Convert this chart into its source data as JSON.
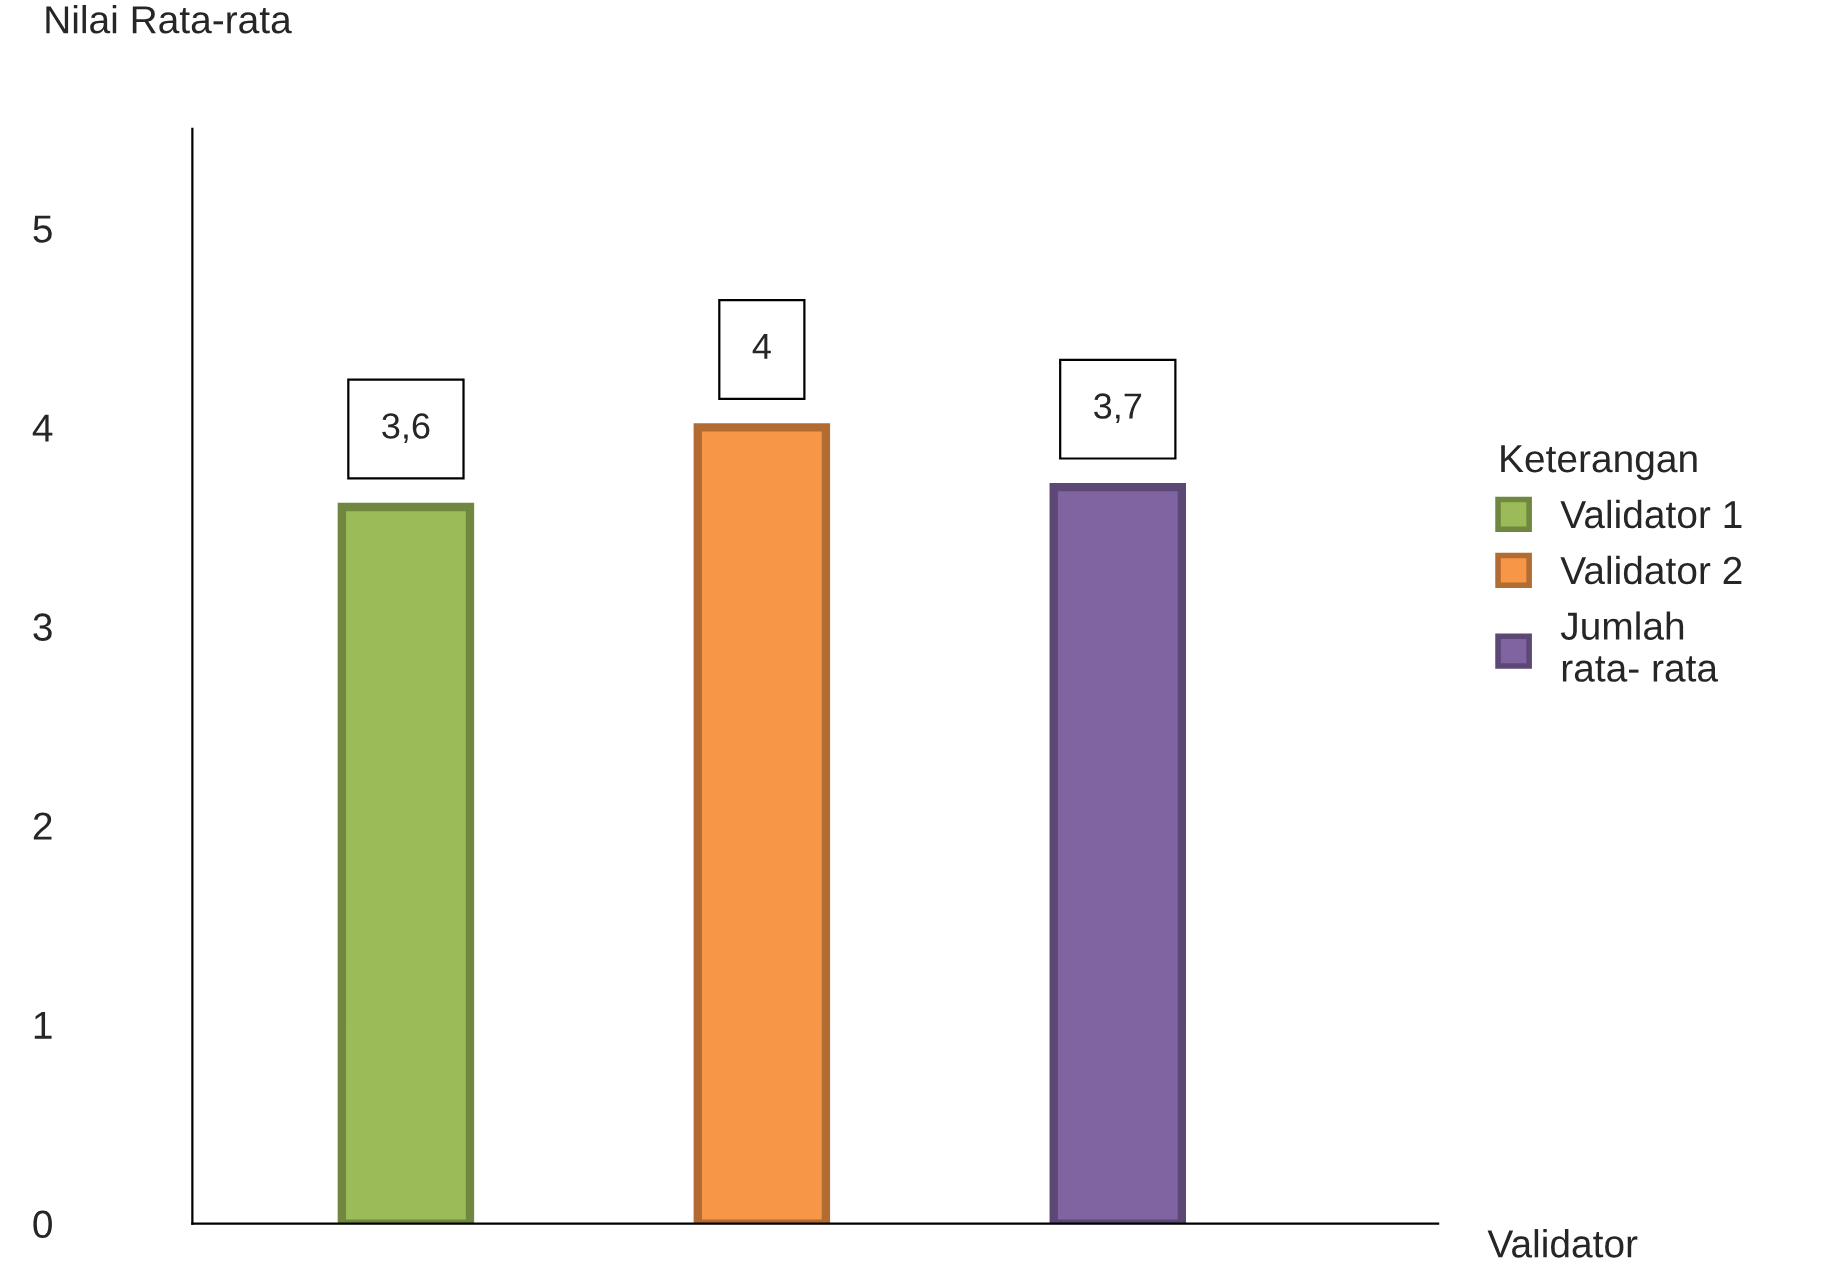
{
  "chart_data": {
    "type": "bar",
    "ylabel": "Nilai Rata-rata",
    "xlabel": "Validator",
    "legend_title": "Keterangan",
    "categories": [
      null,
      null,
      null
    ],
    "series": [
      {
        "name": "Validator 1",
        "color": "#9bbb59",
        "values": [
          3.6,
          null,
          null
        ],
        "value_labels": [
          "3,6",
          null,
          null
        ]
      },
      {
        "name": "Validator 2",
        "color": "#f79646",
        "values": [
          null,
          4,
          null
        ],
        "value_labels": [
          null,
          "4",
          null
        ]
      },
      {
        "name": "Jumlah\nrata- rata",
        "color": "#8064a2",
        "values": [
          null,
          null,
          3.7
        ],
        "value_labels": [
          null,
          null,
          "3,7"
        ]
      }
    ],
    "ylim": [
      0,
      5.5
    ],
    "yticks": [
      0,
      1,
      2,
      3,
      4,
      5
    ],
    "grid": false,
    "legend": "right"
  }
}
